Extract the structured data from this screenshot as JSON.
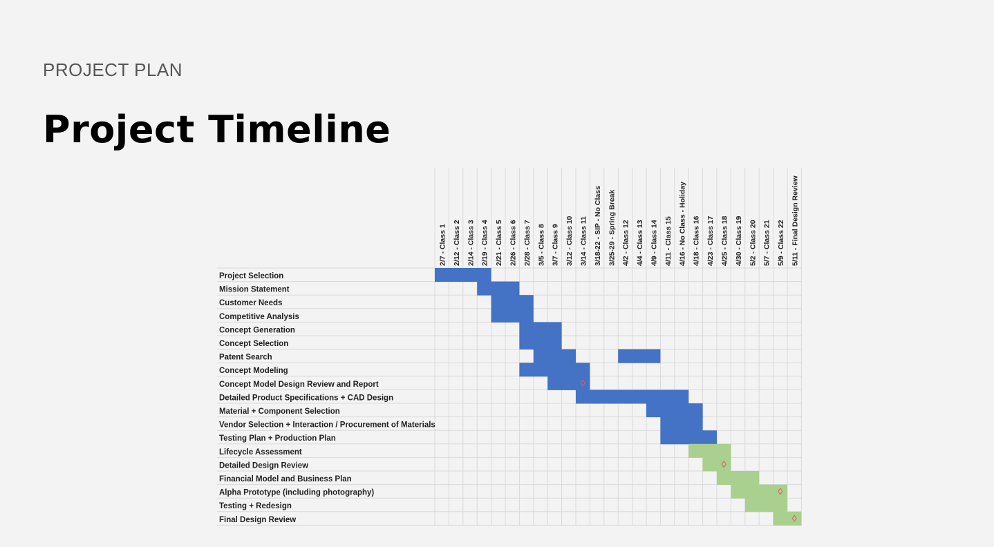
{
  "slide": {
    "eyebrow": "PROJECT PLAN",
    "title": "Project Timeline"
  },
  "colors": {
    "background": "#f3f3f3",
    "blue": "#4472c4",
    "green": "#a9d08e",
    "milestone": "#e06060",
    "grid": "#d9d9d9"
  },
  "chart_data": {
    "type": "gantt",
    "grid": true,
    "columns": [
      "2/7 - Class 1",
      "2/12 - Class 2",
      "2/14 - Class 3",
      "2/19 - Class 4",
      "2/21 - Class 5",
      "2/26 - Class 6",
      "2/28 - Class 7",
      "3/5 - Class 8",
      "3/7 - Class 9",
      "3/12 - Class 10",
      "3/14 - Class 11",
      "3/18-22 - SIP - No Class",
      "3/25-29 - Spring Break",
      "4/2 - Class 12",
      "4/4 - Class 13",
      "4/9 - Class 14",
      "4/11 - Class 15",
      "4/16 - No Class - Holiday",
      "4/18 - Class 16",
      "4/23 - Class 17",
      "4/25 - Class 18",
      "4/30 - Class 19",
      "5/2 - Class 20",
      "5/7 - Class 21",
      "5/9 - Class 22",
      "5/11 - Final Design Review"
    ],
    "tasks": [
      {
        "name": "Project Selection",
        "color": "blue",
        "spans": [
          [
            0,
            3
          ]
        ]
      },
      {
        "name": "Mission Statement",
        "color": "blue",
        "spans": [
          [
            3,
            5
          ]
        ]
      },
      {
        "name": "Customer Needs",
        "color": "blue",
        "spans": [
          [
            4,
            6
          ]
        ]
      },
      {
        "name": "Competitive Analysis",
        "color": "blue",
        "spans": [
          [
            4,
            6
          ]
        ]
      },
      {
        "name": "Concept Generation",
        "color": "blue",
        "spans": [
          [
            6,
            8
          ]
        ]
      },
      {
        "name": "Concept Selection",
        "color": "blue",
        "spans": [
          [
            6,
            8
          ]
        ]
      },
      {
        "name": "Patent Search",
        "color": "blue",
        "spans": [
          [
            7,
            9
          ],
          [
            13,
            15
          ]
        ]
      },
      {
        "name": "Concept Modeling",
        "color": "blue",
        "spans": [
          [
            6,
            10
          ]
        ]
      },
      {
        "name": "Concept Model Design Review and Report",
        "color": "blue",
        "spans": [
          [
            8,
            10
          ]
        ],
        "milestone": 10
      },
      {
        "name": "Detailed Product Specifications + CAD Design",
        "color": "blue",
        "spans": [
          [
            10,
            17
          ]
        ]
      },
      {
        "name": "Material + Component Selection",
        "color": "blue",
        "spans": [
          [
            15,
            18
          ]
        ]
      },
      {
        "name": "Vendor Selection + Interaction / Procurement of Materials",
        "color": "blue",
        "spans": [
          [
            16,
            18
          ]
        ]
      },
      {
        "name": "Testing Plan + Production Plan",
        "color": "blue",
        "spans": [
          [
            16,
            19
          ]
        ]
      },
      {
        "name": "Lifecycle Assessment",
        "color": "green",
        "spans": [
          [
            18,
            20
          ]
        ]
      },
      {
        "name": "Detailed Design Review",
        "color": "green",
        "spans": [
          [
            19,
            20
          ]
        ],
        "milestone": 20
      },
      {
        "name": "Financial Model and Business Plan",
        "color": "green",
        "spans": [
          [
            20,
            22
          ]
        ]
      },
      {
        "name": "Alpha Prototype (including photography)",
        "color": "green",
        "spans": [
          [
            21,
            24
          ]
        ],
        "milestone": 24
      },
      {
        "name": "Testing + Redesign",
        "color": "green",
        "spans": [
          [
            22,
            24
          ]
        ]
      },
      {
        "name": "Final Design Review",
        "color": "green",
        "spans": [
          [
            24,
            25
          ]
        ],
        "milestone": 25
      }
    ]
  }
}
